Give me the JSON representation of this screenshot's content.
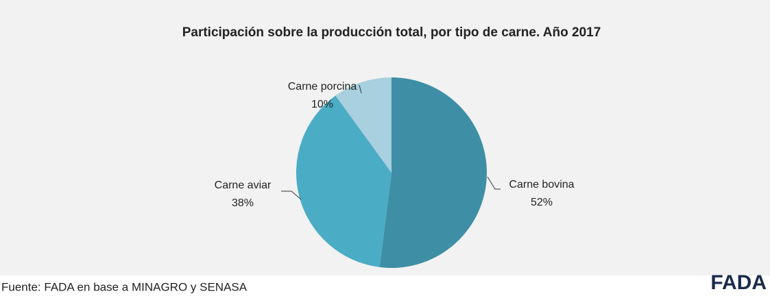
{
  "chart_data": {
    "type": "pie",
    "title": "Participación sobre la producción total, por tipo de carne. Año 2017",
    "categories": [
      "Carne bovina",
      "Carne aviar",
      "Carne porcina"
    ],
    "values": [
      52,
      38,
      10
    ],
    "value_labels": [
      "52%",
      "38%",
      "10%"
    ],
    "colors": [
      "#3e8fa5",
      "#4bacc6",
      "#a8d0de"
    ]
  },
  "footer": {
    "source": "Fuente:  FADA en base a MINAGRO y SENASA",
    "logo": "FADA"
  }
}
